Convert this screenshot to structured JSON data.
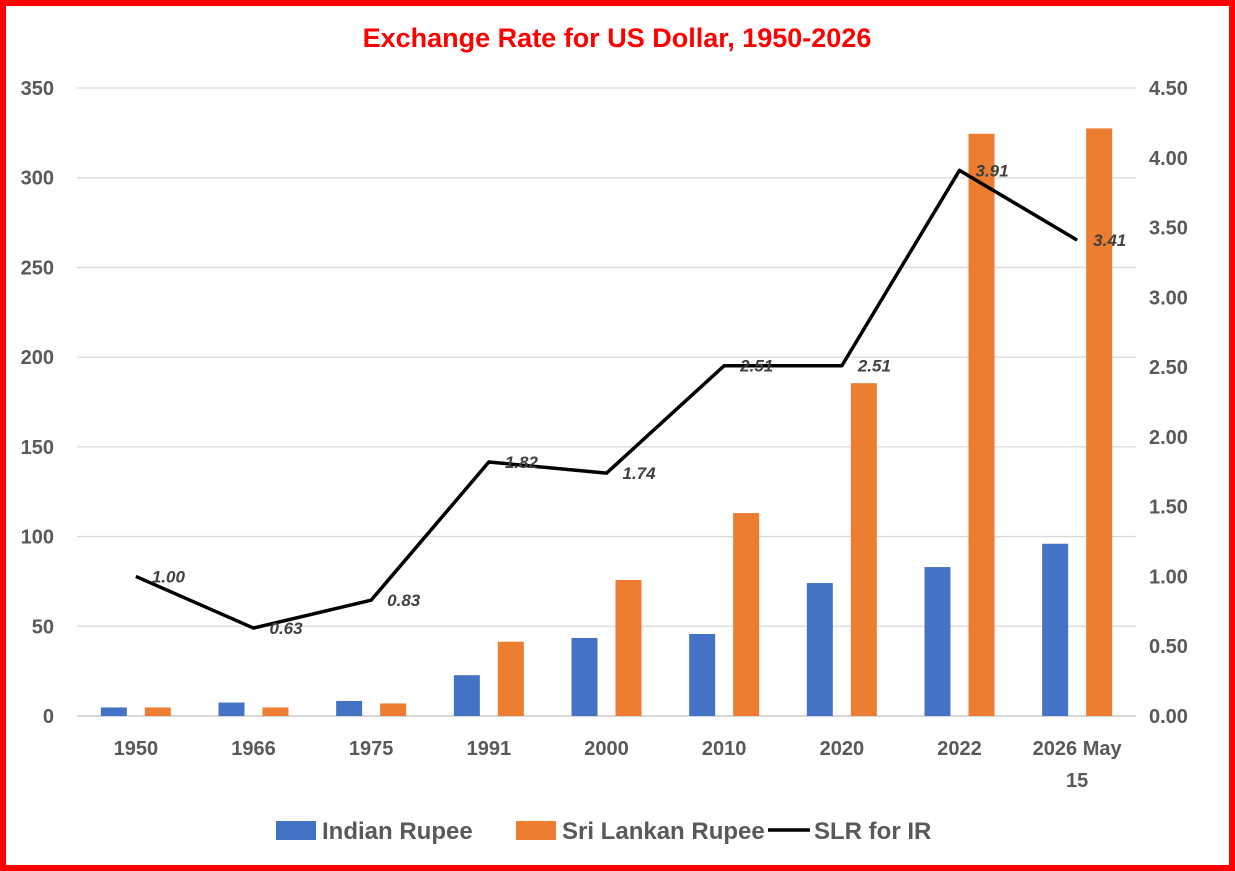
{
  "chart_data": {
    "type": "bar",
    "title": "Exchange Rate for US Dollar, 1950-2026",
    "categories": [
      "1950",
      "1966",
      "1975",
      "1991",
      "2000",
      "2010",
      "2020",
      "2022",
      "2026 May 15"
    ],
    "series": [
      {
        "name": "Indian Rupee",
        "kind": "bar",
        "axis": "left",
        "color": "#4472c4",
        "values": [
          4.76,
          7.5,
          8.39,
          22.74,
          43.5,
          45.7,
          74.1,
          83.0,
          96.0
        ]
      },
      {
        "name": "Sri Lankan Rupee",
        "kind": "bar",
        "axis": "left",
        "color": "#ed7d31",
        "values": [
          4.76,
          4.76,
          7.0,
          41.4,
          75.8,
          113.1,
          185.5,
          324.5,
          327.5
        ]
      },
      {
        "name": "SLR for IR",
        "kind": "line",
        "axis": "right",
        "color": "#000000",
        "values": [
          1.0,
          0.63,
          0.83,
          1.82,
          1.74,
          2.51,
          2.51,
          3.91,
          3.41
        ],
        "labels": [
          "1.00",
          "0.63",
          "0.83",
          "1.82",
          "1.74",
          "2.51",
          "2.51",
          "3.91",
          "3.41"
        ]
      }
    ],
    "y_left": {
      "min": 0,
      "max": 350,
      "step": 50,
      "ticks": [
        "0",
        "50",
        "100",
        "150",
        "200",
        "250",
        "300",
        "350"
      ]
    },
    "y_right": {
      "min": 0,
      "max": 4.5,
      "step": 0.5,
      "ticks": [
        "0.00",
        "0.50",
        "1.00",
        "1.50",
        "2.00",
        "2.50",
        "3.00",
        "3.50",
        "4.00",
        "4.50"
      ]
    },
    "grid": true,
    "legend": "bottom",
    "title_color": "#ff0000"
  }
}
